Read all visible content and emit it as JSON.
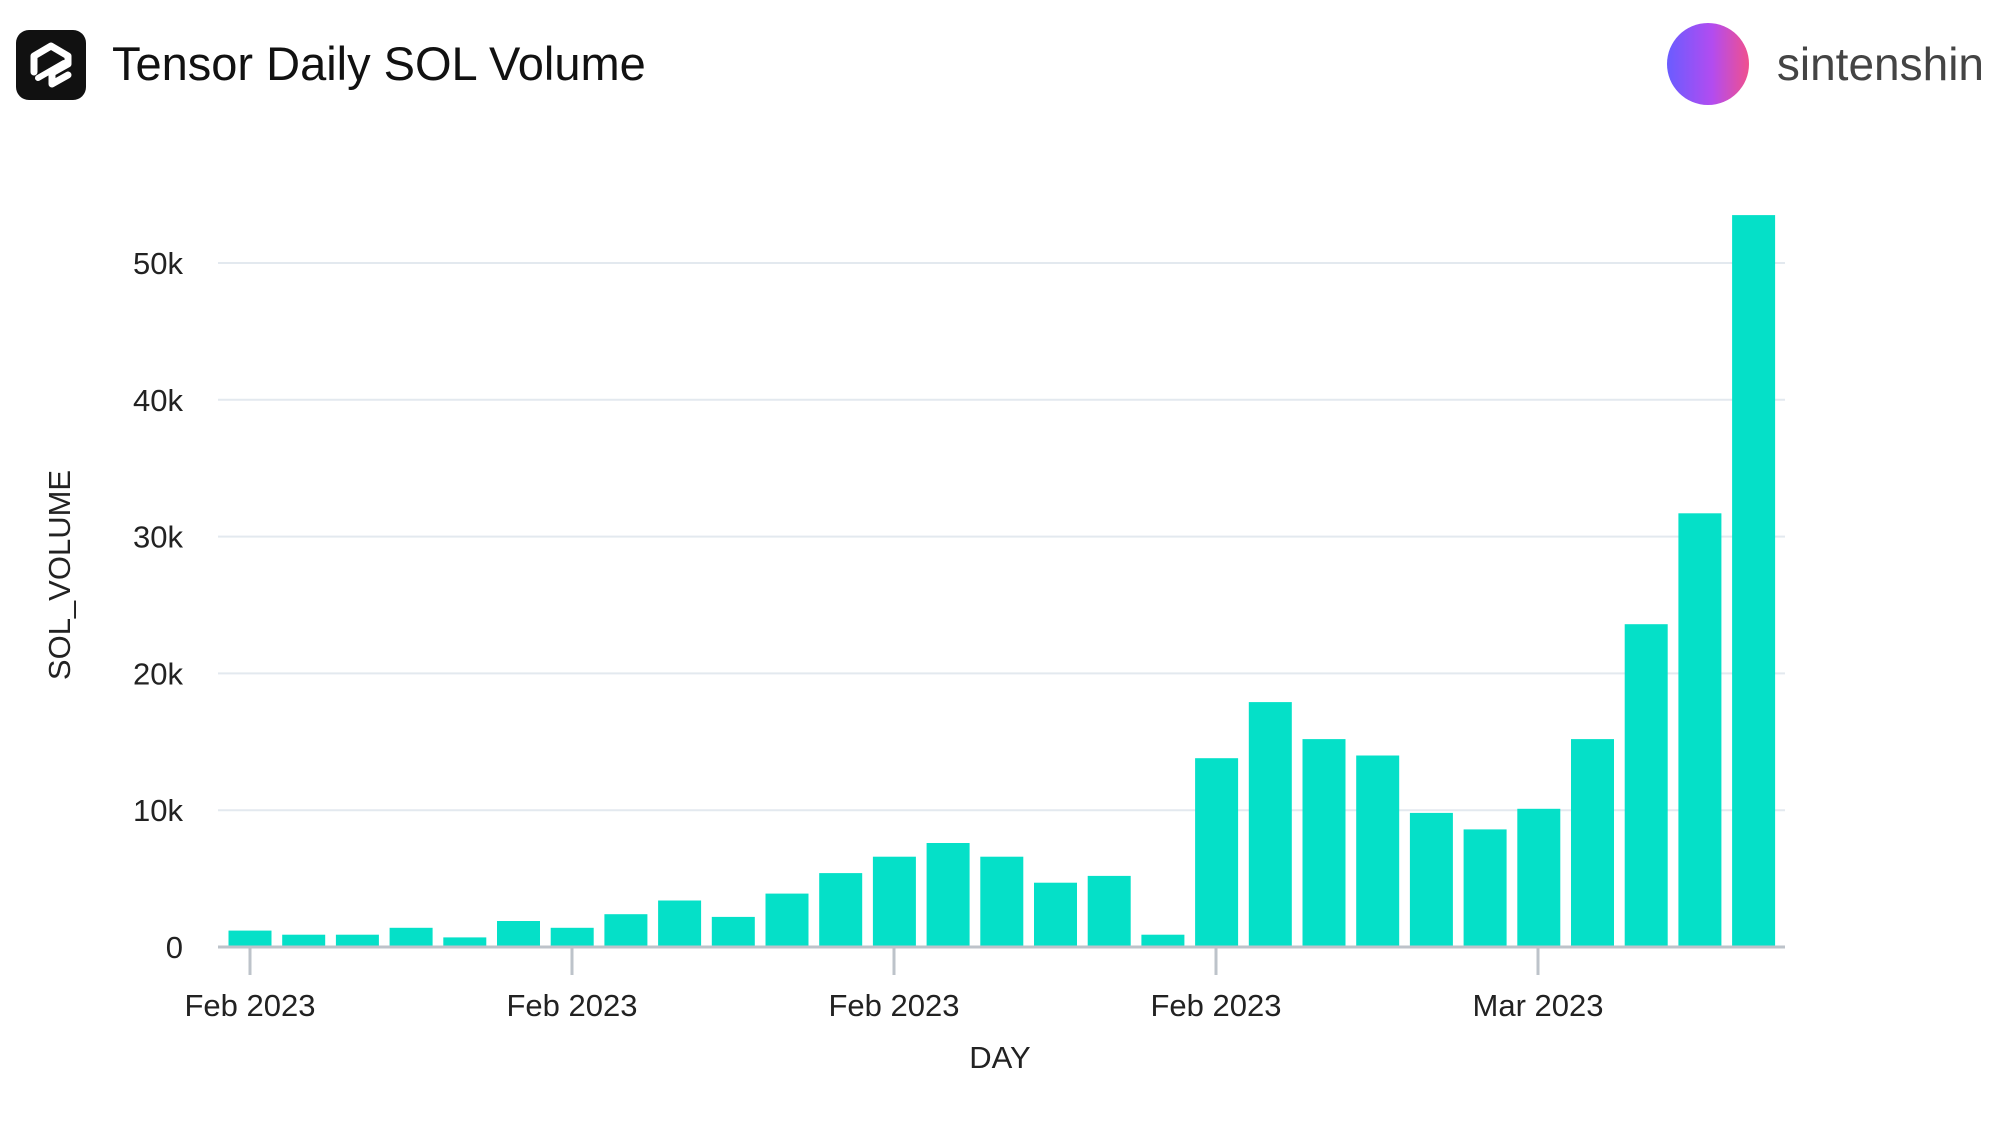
{
  "header": {
    "title": "Tensor Daily SOL Volume",
    "logo_icon": "tensor-logo-icon",
    "username": "sintenshin",
    "avatar_icon": "gradient-avatar-icon"
  },
  "colors": {
    "bar": "#05e0c8",
    "grid": "#e3e9ef",
    "axis": "#bdc3ca",
    "text": "#222222"
  },
  "chart_data": {
    "type": "bar",
    "title": "Tensor Daily SOL Volume",
    "xlabel": "DAY",
    "ylabel": "SOL_VOLUME",
    "ylim": [
      0,
      55000
    ],
    "yticks": [
      0,
      10000,
      20000,
      30000,
      40000,
      50000
    ],
    "ytick_labels": [
      "0",
      "10k",
      "20k",
      "30k",
      "40k",
      "50k"
    ],
    "xtick_labels": [
      "Feb 2023",
      "Feb 2023",
      "Feb 2023",
      "Feb 2023",
      "Mar 2023"
    ],
    "grid": true,
    "legend": "none",
    "values": [
      1200,
      900,
      900,
      1400,
      700,
      1900,
      1400,
      2400,
      3400,
      2200,
      3900,
      5400,
      6600,
      7600,
      6600,
      4700,
      5200,
      900,
      13800,
      17900,
      15200,
      14000,
      9800,
      8600,
      10100,
      15200,
      23600,
      31700,
      53500
    ]
  }
}
